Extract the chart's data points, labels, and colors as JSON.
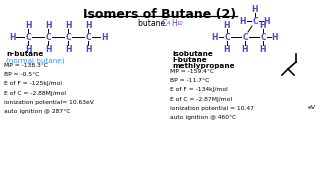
{
  "title": "Isomers of Butane (2)",
  "background_color": "#ffffff",
  "title_color": "#000000",
  "title_fontsize": 9,
  "left_name": "n-butane",
  "left_subname": "(normal butane)",
  "left_props": [
    "MP = -138.3°C",
    "BP = -0.5°C",
    "E of F = -125kJ/mol",
    "E of C = -2.88MJ/mol",
    "ionization potential= 10.63eV",
    "auto ignition @ 287°C"
  ],
  "right_name1": "isobutane",
  "right_name2": "I-butane",
  "right_name3": "methlypropane",
  "right_props": [
    "MP = -159.4°C",
    "BP = -11.7°C",
    "E of F = -134kJ/mol",
    "E of C = -2.87MJ/mol",
    "ionization potential = 10.47",
    "auto ignition @ 460°C"
  ],
  "ev_label": "eV",
  "h_color": "#4444cc",
  "c_color": "#7744cc",
  "line_color": "#000000",
  "text_color": "#000000",
  "subname_color": "#3399ff"
}
